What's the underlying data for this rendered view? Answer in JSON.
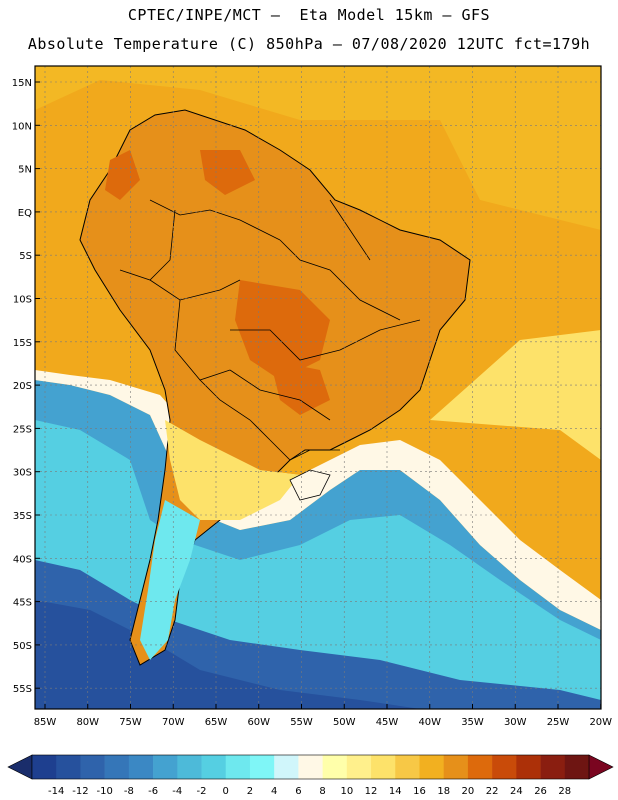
{
  "header": {
    "line1": "CPTEC/INPE/MCT –  Eta Model 15km – GFS",
    "line2": "Absolute Temperature (C) 850hPa – 07/08/2020 12UTC fct=179h"
  },
  "map": {
    "lat_labels": [
      "15N",
      "10N",
      "5N",
      "EQ",
      "5S",
      "10S",
      "15S",
      "20S",
      "25S",
      "30S",
      "35S",
      "40S",
      "45S",
      "50S",
      "55S"
    ],
    "lon_labels": [
      "85W",
      "80W",
      "75W",
      "70W",
      "65W",
      "60W",
      "55W",
      "50W",
      "45W",
      "40W",
      "35W",
      "30W",
      "25W",
      "20W"
    ]
  },
  "colorbar": {
    "labels": [
      "-14",
      "-12",
      "-10",
      "-8",
      "-6",
      "-4",
      "-2",
      "0",
      "2",
      "4",
      "6",
      "8",
      "10",
      "12",
      "14",
      "16",
      "18",
      "20",
      "22",
      "24",
      "26",
      "28"
    ],
    "colors": [
      "#1e3f8f",
      "#26519d",
      "#2f63ab",
      "#3576b8",
      "#3b88c4",
      "#44a2d0",
      "#4dbad9",
      "#55cfe2",
      "#6ee8ee",
      "#7ff6f7",
      "#d0f6fb",
      "#fff8e6",
      "#ffffaa",
      "#fff08c",
      "#fde26a",
      "#f7c846",
      "#f2b020",
      "#e6901a",
      "#dd6a0c",
      "#c94b09",
      "#ac3008",
      "#8a1e10",
      "#6e1512"
    ],
    "low_color": "#1a2d6b",
    "high_color": "#7a0520"
  }
}
